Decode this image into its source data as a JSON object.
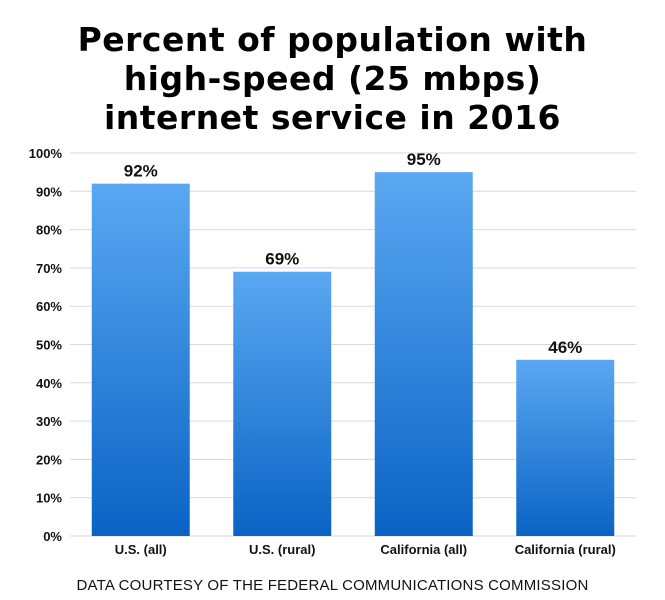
{
  "title_lines": [
    "Percent of population with",
    "high-speed (25 mbps)",
    "internet service in 2016"
  ],
  "footer": "DATA COURTESY OF THE FEDERAL COMMUNICATIONS COMMISSION",
  "colors": {
    "bar_top": "#5aa8f2",
    "bar_bottom": "#0a63c4",
    "grid": "#d9d9d9",
    "text": "#111111"
  },
  "chart_data": {
    "type": "bar",
    "title": "Percent of population with high-speed (25 mbps) internet service in 2016",
    "categories": [
      "U.S. (all)",
      "U.S. (rural)",
      "California (all)",
      "California (rural)"
    ],
    "values": [
      92,
      69,
      95,
      46
    ],
    "value_labels": [
      "92%",
      "69%",
      "95%",
      "46%"
    ],
    "yticks": [
      0,
      10,
      20,
      30,
      40,
      50,
      60,
      70,
      80,
      90,
      100
    ],
    "ytick_labels": [
      "0%",
      "10%",
      "20%",
      "30%",
      "40%",
      "50%",
      "60%",
      "70%",
      "80%",
      "90%",
      "100%"
    ],
    "ylim": [
      0,
      100
    ],
    "xlabel": "",
    "ylabel": "",
    "grid": true,
    "legend": "none"
  }
}
